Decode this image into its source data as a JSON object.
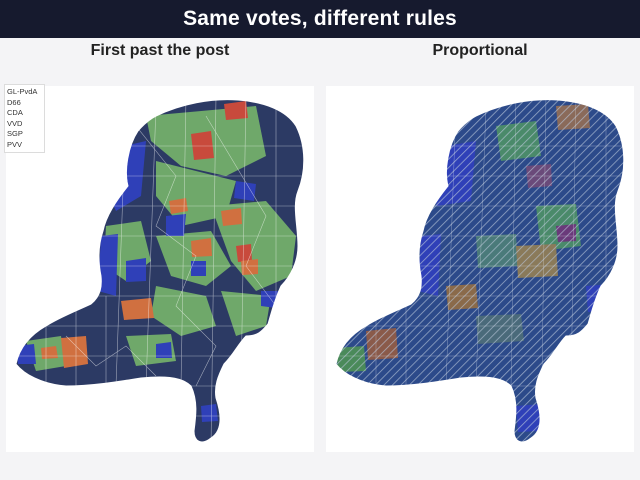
{
  "title": "Same votes, different rules",
  "panels": [
    {
      "title": "First past the post"
    },
    {
      "title": "Proportional"
    }
  ],
  "legend": {
    "items": [
      "GL-PvdA",
      "D66",
      "CDA",
      "VVD",
      "SGP",
      "PVV"
    ]
  },
  "colors": {
    "title_bg": "#161a2e",
    "pvv": "#2c3a64",
    "vvd": "#2f40b8",
    "cda": "#6fa86a",
    "d66": "#3c8a5a",
    "sgp": "#d07040",
    "gl_pvda": "#c84a3c",
    "stripe": "#b8c6da"
  }
}
